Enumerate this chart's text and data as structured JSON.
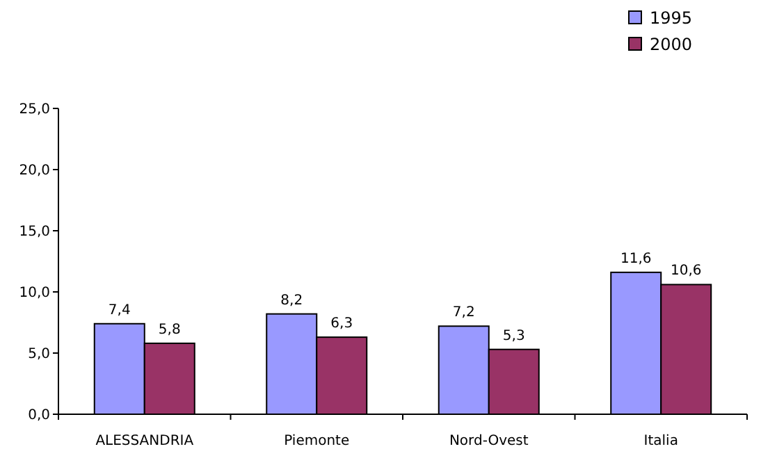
{
  "chart_data": {
    "type": "bar",
    "categories": [
      "ALESSANDRIA",
      "Piemonte",
      "Nord-Ovest",
      "Italia"
    ],
    "series": [
      {
        "name": "1995",
        "color": "#9999ff",
        "values": [
          7.4,
          8.2,
          7.2,
          11.6
        ],
        "value_labels": [
          "7,4",
          "8,2",
          "7,2",
          "11,6"
        ]
      },
      {
        "name": "2000",
        "color": "#993366",
        "values": [
          5.8,
          6.3,
          5.3,
          10.6
        ],
        "value_labels": [
          "5,8",
          "6,3",
          "5,3",
          "10,6"
        ]
      }
    ],
    "ylim": [
      0,
      25
    ],
    "yticks": [
      {
        "value": 0,
        "label": "0,0"
      },
      {
        "value": 5,
        "label": "5,0"
      },
      {
        "value": 10,
        "label": "10,0"
      },
      {
        "value": 15,
        "label": "15,0"
      },
      {
        "value": 20,
        "label": "20,0"
      },
      {
        "value": 25,
        "label": "25,0"
      }
    ],
    "grid": false,
    "legend": "top right"
  }
}
